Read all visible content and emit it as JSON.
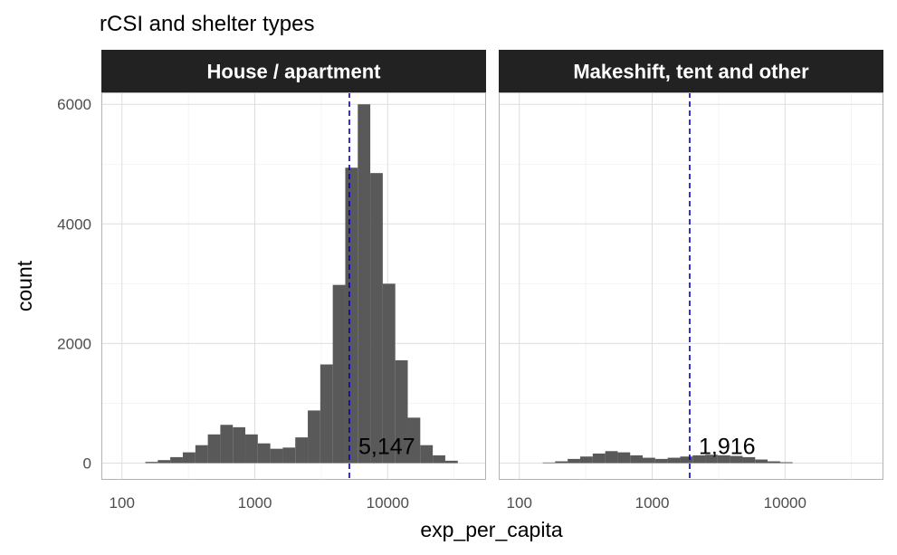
{
  "chart_data": {
    "type": "histogram",
    "title": "rCSI and shelter types",
    "xlabel": "exp_per_capita",
    "ylabel": "count",
    "x_scale": "log10",
    "xlim": [
      70,
      55000
    ],
    "ylim": [
      -280,
      6200
    ],
    "x_ticks": [
      100,
      1000,
      10000
    ],
    "x_tick_labels": [
      "100",
      "1000",
      "10000"
    ],
    "y_ticks": [
      0,
      2000,
      4000,
      6000
    ],
    "y_tick_labels": [
      "0",
      "2000",
      "4000",
      "6000"
    ],
    "grid": true,
    "bar_color": "#595959",
    "strip_color": "#222222",
    "vline_color": "#0000cc",
    "panels": [
      {
        "strip_label": "House / apartment",
        "vline_x": 5147,
        "annotation": "5,147",
        "bins": [
          {
            "x0": 150,
            "x1": 186,
            "count": 20
          },
          {
            "x0": 186,
            "x1": 231,
            "count": 50
          },
          {
            "x0": 231,
            "x1": 287,
            "count": 100
          },
          {
            "x0": 287,
            "x1": 357,
            "count": 180
          },
          {
            "x0": 357,
            "x1": 443,
            "count": 300
          },
          {
            "x0": 443,
            "x1": 550,
            "count": 480
          },
          {
            "x0": 550,
            "x1": 683,
            "count": 640
          },
          {
            "x0": 683,
            "x1": 848,
            "count": 600
          },
          {
            "x0": 848,
            "x1": 1053,
            "count": 480
          },
          {
            "x0": 1053,
            "x1": 1307,
            "count": 330
          },
          {
            "x0": 1307,
            "x1": 1624,
            "count": 240
          },
          {
            "x0": 1624,
            "x1": 2016,
            "count": 260
          },
          {
            "x0": 2016,
            "x1": 2504,
            "count": 430
          },
          {
            "x0": 2504,
            "x1": 3109,
            "count": 880
          },
          {
            "x0": 3109,
            "x1": 3861,
            "count": 1650
          },
          {
            "x0": 3861,
            "x1": 4795,
            "count": 2980
          },
          {
            "x0": 4795,
            "x1": 5954,
            "count": 4940
          },
          {
            "x0": 5954,
            "x1": 7395,
            "count": 6000
          },
          {
            "x0": 7395,
            "x1": 9183,
            "count": 4850
          },
          {
            "x0": 9183,
            "x1": 11404,
            "count": 3000
          },
          {
            "x0": 11404,
            "x1": 14162,
            "count": 1720
          },
          {
            "x0": 14162,
            "x1": 17588,
            "count": 760
          },
          {
            "x0": 17588,
            "x1": 21842,
            "count": 300
          },
          {
            "x0": 21842,
            "x1": 27125,
            "count": 130
          },
          {
            "x0": 27125,
            "x1": 33686,
            "count": 40
          }
        ]
      },
      {
        "strip_label": "Makeshift, tent and other",
        "vline_x": 1916,
        "annotation": "1,916",
        "bins": [
          {
            "x0": 150,
            "x1": 186,
            "count": 10
          },
          {
            "x0": 186,
            "x1": 231,
            "count": 30
          },
          {
            "x0": 231,
            "x1": 287,
            "count": 70
          },
          {
            "x0": 287,
            "x1": 357,
            "count": 110
          },
          {
            "x0": 357,
            "x1": 443,
            "count": 160
          },
          {
            "x0": 443,
            "x1": 550,
            "count": 200
          },
          {
            "x0": 550,
            "x1": 683,
            "count": 180
          },
          {
            "x0": 683,
            "x1": 848,
            "count": 130
          },
          {
            "x0": 848,
            "x1": 1053,
            "count": 90
          },
          {
            "x0": 1053,
            "x1": 1307,
            "count": 70
          },
          {
            "x0": 1307,
            "x1": 1624,
            "count": 90
          },
          {
            "x0": 1624,
            "x1": 2016,
            "count": 110
          },
          {
            "x0": 2016,
            "x1": 2504,
            "count": 130
          },
          {
            "x0": 2504,
            "x1": 3109,
            "count": 140
          },
          {
            "x0": 3109,
            "x1": 3861,
            "count": 130
          },
          {
            "x0": 3861,
            "x1": 4795,
            "count": 120
          },
          {
            "x0": 4795,
            "x1": 5954,
            "count": 100
          },
          {
            "x0": 5954,
            "x1": 7395,
            "count": 60
          },
          {
            "x0": 7395,
            "x1": 9183,
            "count": 30
          },
          {
            "x0": 9183,
            "x1": 11404,
            "count": 15
          }
        ]
      }
    ]
  }
}
